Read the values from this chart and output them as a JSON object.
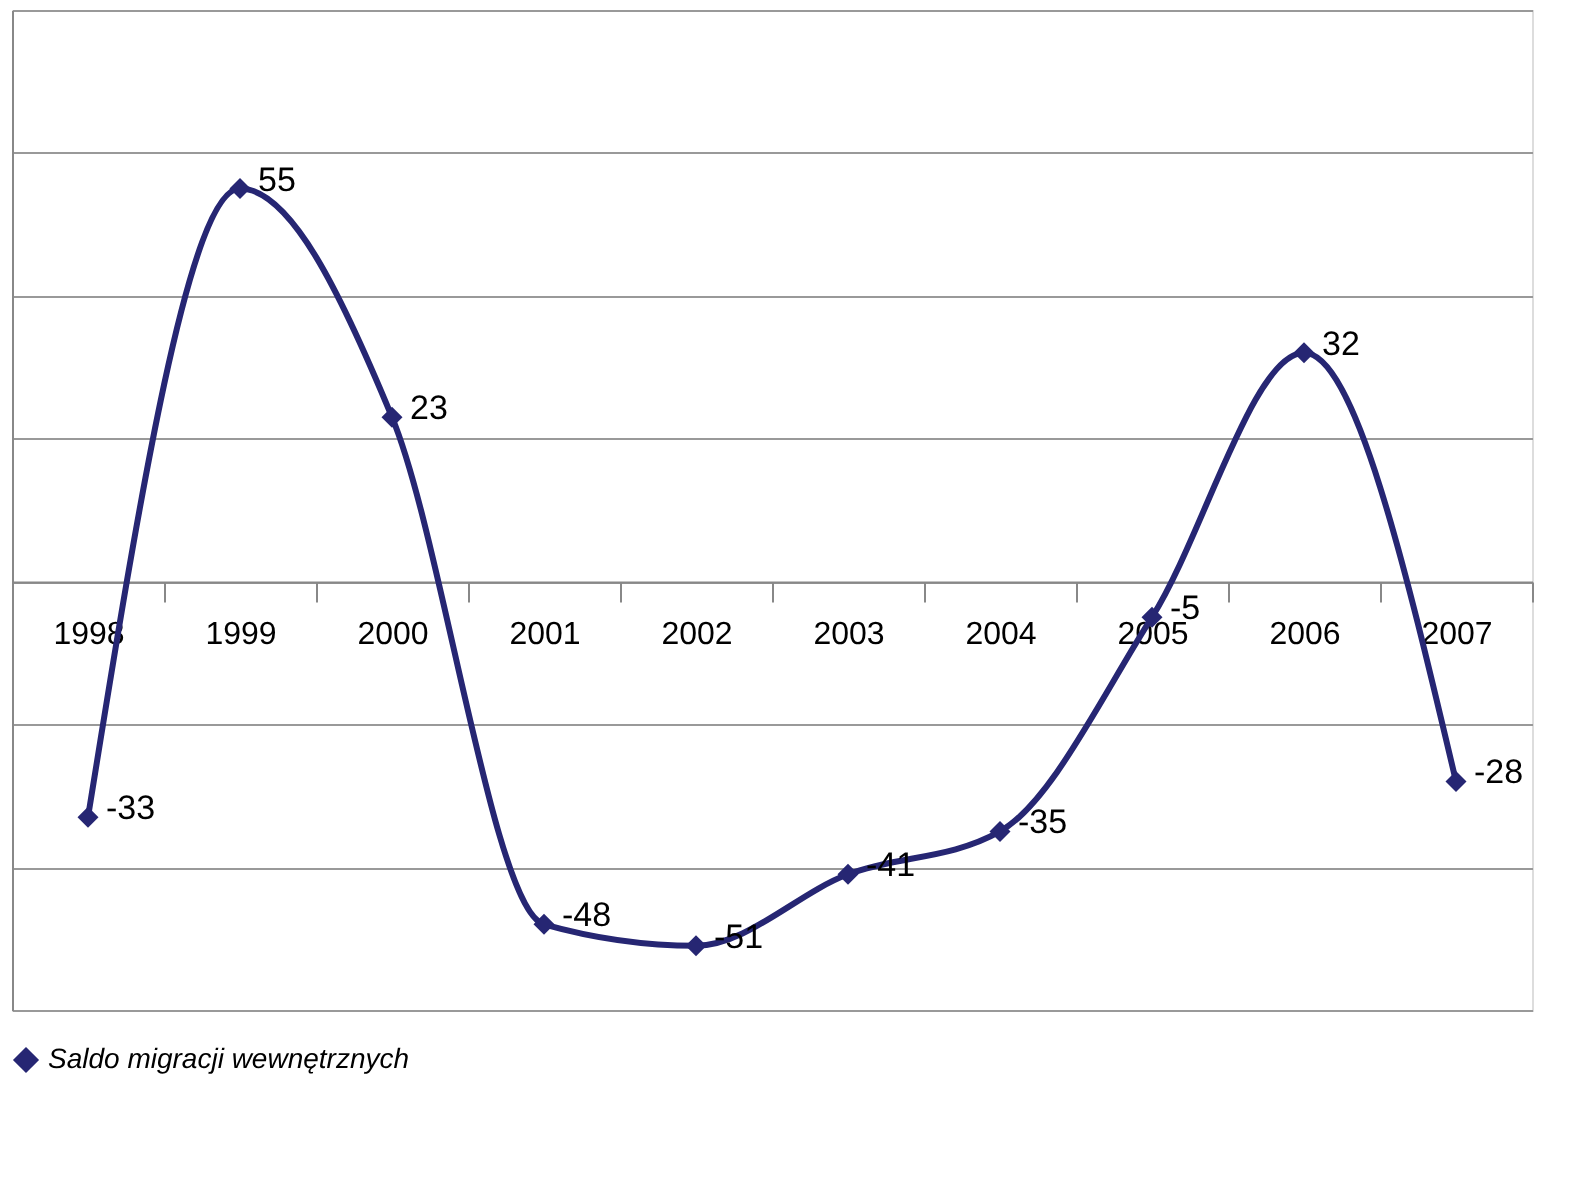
{
  "chart_data": {
    "type": "line",
    "categories": [
      "1998",
      "1999",
      "2000",
      "2001",
      "2002",
      "2003",
      "2004",
      "2005",
      "2006",
      "2007"
    ],
    "series": [
      {
        "name": "Saldo migracji wewnętrznych",
        "color": "#262673",
        "values": [
          -33,
          55,
          23,
          -48,
          -51,
          -41,
          -35,
          -5,
          32,
          -28
        ]
      }
    ],
    "ylim": [
      -60,
      80
    ],
    "yticks": [
      {
        "value": -60,
        "label": null
      },
      {
        "value": -40,
        "label": null
      },
      {
        "value": -20,
        "label": null
      },
      {
        "value": 0,
        "label": null
      },
      {
        "value": 20,
        "label": null
      },
      {
        "value": 40,
        "label": null
      },
      {
        "value": 60,
        "label": null
      },
      {
        "value": 80,
        "label": null
      }
    ],
    "grid": "y",
    "legend": "bottom",
    "marker": "diamond",
    "line_style": "solid",
    "data_labels": true,
    "tick_labels": "x"
  }
}
